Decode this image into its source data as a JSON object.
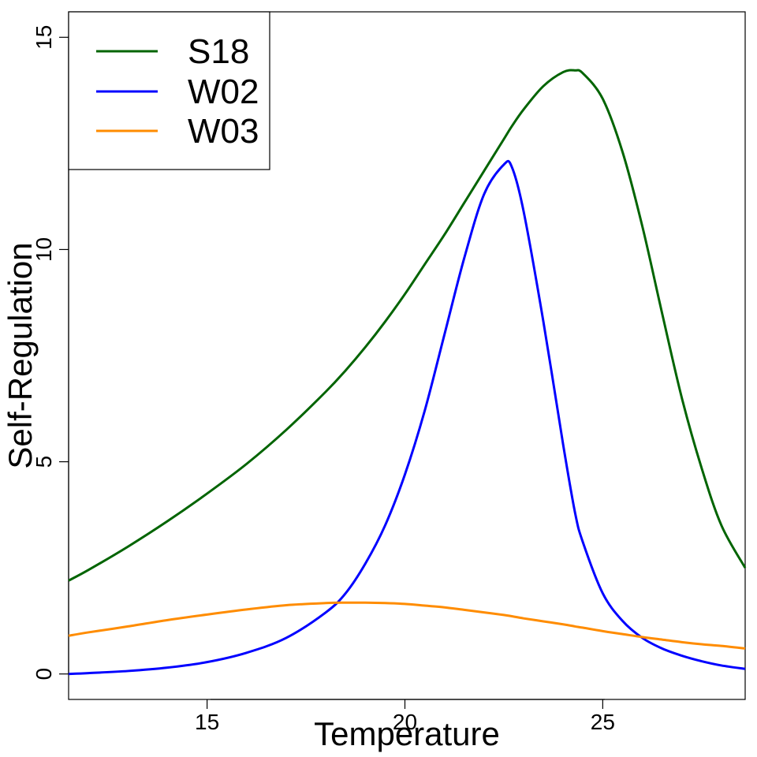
{
  "chart_data": {
    "type": "line",
    "title": "",
    "xlabel": "Temperature",
    "ylabel": "Self-Regulation",
    "xlim": [
      11.5,
      28.6
    ],
    "ylim": [
      -0.6,
      15.6
    ],
    "xticks": [
      15,
      20,
      25
    ],
    "yticks": [
      0,
      5,
      10,
      15
    ],
    "grid": false,
    "legend_position": "top-left",
    "x": [
      11.5,
      12,
      13,
      14,
      15,
      16,
      17,
      18,
      18.5,
      19,
      19.5,
      20,
      20.5,
      21,
      21.5,
      22,
      22.5,
      22.7,
      23,
      23.5,
      24,
      24.3,
      24.5,
      25,
      25.5,
      26,
      26.5,
      27,
      27.5,
      28,
      28.6
    ],
    "series": [
      {
        "name": "S18",
        "color": "#006400",
        "values": [
          2.2,
          2.45,
          3.0,
          3.6,
          4.25,
          4.95,
          5.75,
          6.65,
          7.15,
          7.7,
          8.3,
          8.95,
          9.65,
          10.35,
          11.1,
          11.85,
          12.6,
          12.9,
          13.3,
          13.85,
          14.18,
          14.22,
          14.15,
          13.55,
          12.3,
          10.55,
          8.5,
          6.5,
          4.85,
          3.5,
          2.5
        ]
      },
      {
        "name": "W02",
        "color": "#0000ff",
        "values": [
          0.0,
          0.02,
          0.07,
          0.15,
          0.28,
          0.5,
          0.85,
          1.45,
          1.9,
          2.6,
          3.5,
          4.7,
          6.2,
          8.0,
          9.8,
          11.3,
          12.0,
          11.95,
          10.9,
          8.3,
          5.4,
          3.8,
          3.1,
          1.9,
          1.25,
          0.85,
          0.6,
          0.43,
          0.3,
          0.2,
          0.12
        ]
      },
      {
        "name": "W03",
        "color": "#ff8c00",
        "values": [
          0.9,
          0.98,
          1.12,
          1.27,
          1.4,
          1.52,
          1.62,
          1.67,
          1.68,
          1.68,
          1.67,
          1.65,
          1.61,
          1.57,
          1.51,
          1.45,
          1.39,
          1.36,
          1.31,
          1.24,
          1.17,
          1.12,
          1.09,
          1.01,
          0.94,
          0.87,
          0.81,
          0.75,
          0.7,
          0.66,
          0.6
        ]
      }
    ]
  }
}
